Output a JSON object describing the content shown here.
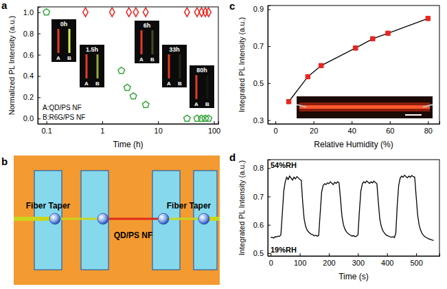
{
  "chart_data": [
    {
      "panel": "a",
      "type": "scatter",
      "log": "x",
      "xlabel": "Time (h)",
      "ylabel": "Normalized PL Intensity (a.u.)",
      "xlim": [
        0.07,
        120
      ],
      "xticks": [
        0.1,
        1,
        10,
        100
      ],
      "ylim": [
        -0.05,
        1.05
      ],
      "yticks": [
        {
          "value": 0,
          "label": "0.0"
        },
        0.2,
        0.4,
        0.6,
        0.8,
        {
          "value": 1,
          "label": "1.0"
        }
      ],
      "legend": "lower left",
      "series": [
        {
          "name": "A:QD/PS NF",
          "color": "#e8251f",
          "marker": "diamond",
          "x": [
            0.5,
            1.5,
            3,
            4,
            6,
            33,
            50,
            60,
            70,
            80
          ],
          "values": [
            1,
            1,
            1,
            1,
            1,
            1,
            1,
            1,
            1,
            1
          ]
        },
        {
          "name": "B:R6G/PS NF",
          "color": "#35a53a",
          "marker": "pentagon",
          "x": [
            0.1,
            2.2,
            2.8,
            3.6,
            6,
            33,
            50,
            60,
            70,
            80
          ],
          "values": [
            1,
            0.45,
            0.29,
            0.21,
            0.13,
            0,
            0,
            0,
            0,
            0
          ]
        }
      ],
      "annotations": [
        "0h",
        "1.5h",
        "6h",
        "33h",
        "80h"
      ],
      "inset_labels": [
        "A",
        "B"
      ]
    },
    {
      "panel": "c",
      "type": "line",
      "xlabel": "Relative Humidity (%)",
      "ylabel": "Integrated PL Intensity (a.u.)",
      "xlim": [
        -4,
        86
      ],
      "xticks": [
        0,
        20,
        40,
        60,
        80
      ],
      "ylim": [
        0.28,
        0.92
      ],
      "yticks": [
        0.3,
        0.5,
        0.7,
        0.9
      ],
      "x": [
        7,
        17,
        24,
        42,
        51,
        59,
        80
      ],
      "series": [
        {
          "color": "#e8251f",
          "marker": "square",
          "line_style": "solid",
          "values": [
            0.4,
            0.535,
            0.595,
            0.69,
            0.74,
            0.77,
            0.85
          ]
        }
      ]
    },
    {
      "panel": "d",
      "type": "line",
      "xlabel": "Time (s)",
      "ylabel": "Integrated PL Intensity (a.u.)",
      "xlim": [
        -10,
        580
      ],
      "xticks": [
        0,
        100,
        200,
        300,
        400,
        500
      ],
      "ylim": [
        0.49,
        0.83
      ],
      "yticks": [
        0.5,
        0.6,
        0.7,
        0.8
      ],
      "x": [
        0,
        5,
        10,
        15,
        20,
        25,
        30,
        35,
        40,
        45,
        50,
        55,
        60,
        65,
        70,
        75,
        80,
        85,
        90,
        95,
        100,
        105,
        110,
        115,
        120,
        125,
        130,
        135,
        140,
        145,
        150,
        155,
        160,
        165,
        170,
        175,
        180,
        185,
        190,
        195,
        200,
        205,
        210,
        215,
        220,
        225,
        230,
        235,
        240,
        245,
        250,
        255,
        260,
        265,
        270,
        275,
        280,
        285,
        290,
        295,
        300,
        305,
        310,
        315,
        320,
        325,
        330,
        335,
        340,
        345,
        350,
        355,
        360,
        365,
        370,
        375,
        380,
        385,
        390,
        395,
        400,
        405,
        410,
        415,
        420,
        425,
        430,
        435,
        440,
        445,
        450,
        455,
        460,
        465,
        470,
        475,
        480,
        485,
        490,
        495,
        500,
        505,
        510,
        515,
        520,
        525,
        530,
        535,
        540,
        545,
        550,
        555,
        560
      ],
      "series": [
        {
          "color": "#000000",
          "line_style": "solid",
          "values": [
            0.555,
            0.556,
            0.553,
            0.558,
            0.557,
            0.56,
            0.559,
            0.565,
            0.64,
            0.72,
            0.752,
            0.768,
            0.76,
            0.772,
            0.765,
            0.758,
            0.768,
            0.762,
            0.77,
            0.766,
            0.76,
            0.757,
            0.68,
            0.62,
            0.595,
            0.582,
            0.575,
            0.57,
            0.566,
            0.565,
            0.561,
            0.563,
            0.56,
            0.562,
            0.64,
            0.715,
            0.738,
            0.745,
            0.742,
            0.748,
            0.745,
            0.752,
            0.747,
            0.742,
            0.75,
            0.746,
            0.752,
            0.748,
            0.69,
            0.63,
            0.6,
            0.585,
            0.576,
            0.57,
            0.566,
            0.563,
            0.56,
            0.562,
            0.558,
            0.56,
            0.565,
            0.65,
            0.72,
            0.745,
            0.752,
            0.748,
            0.755,
            0.75,
            0.746,
            0.752,
            0.748,
            0.754,
            0.749,
            0.745,
            0.68,
            0.62,
            0.595,
            0.58,
            0.572,
            0.566,
            0.562,
            0.56,
            0.558,
            0.556,
            0.558,
            0.555,
            0.57,
            0.67,
            0.74,
            0.765,
            0.772,
            0.768,
            0.775,
            0.77,
            0.766,
            0.772,
            0.768,
            0.774,
            0.77,
            0.768,
            0.7,
            0.635,
            0.6,
            0.582,
            0.57,
            0.563,
            0.558,
            0.555,
            0.552,
            0.55,
            0.548,
            0.546,
            0.545
          ]
        }
      ],
      "annotations": [
        "54%RH",
        "19%RH"
      ]
    }
  ],
  "diagram": {
    "panel": "b",
    "fiber_taper_labels": [
      "Fiber Taper",
      "Fiber Taper"
    ],
    "nanofiber_label": "QD/PS NF"
  }
}
